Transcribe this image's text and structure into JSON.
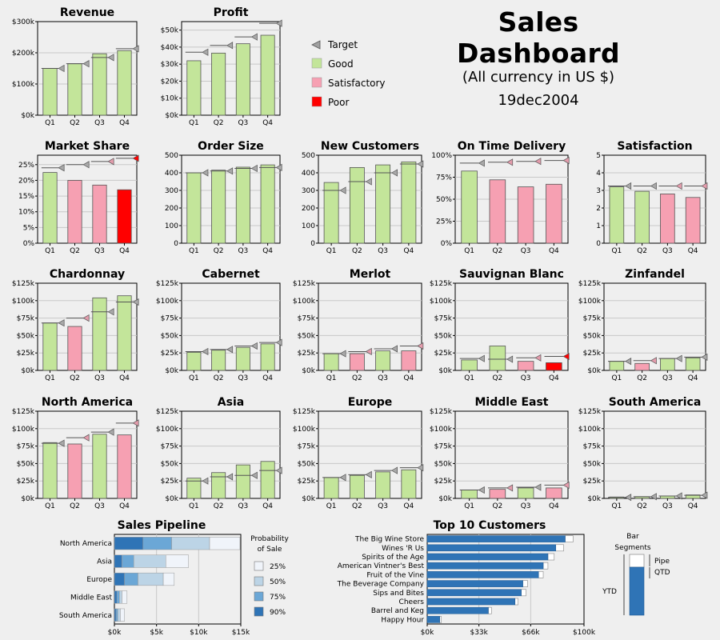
{
  "header": {
    "title": "Sales Dashboard",
    "subtitle": "(All currency in US $)",
    "date": "19dec2004"
  },
  "colors": {
    "good": "#c3e59a",
    "satisfactory": "#f6a0b2",
    "poor": "#ff0000",
    "target_good": "#a9a9a9",
    "target_satisfactory": "#e49cac",
    "target_poor": "#ff0000",
    "pipeline_25": "#f0f4fa",
    "pipeline_50": "#bcd4e6",
    "pipeline_75": "#6ba7d6",
    "pipeline_90": "#2f74b6",
    "customer_qtd": "#2f74b6",
    "customer_pipe": "#ffffff"
  },
  "legend": {
    "items": [
      {
        "label": "Target",
        "icon": "target-triangle-icon"
      },
      {
        "label": "Good",
        "color": "#c3e59a"
      },
      {
        "label": "Satisfactory",
        "color": "#f6a0b2"
      },
      {
        "label": "Poor",
        "color": "#ff0000"
      }
    ]
  },
  "chart_data": [
    {
      "type": "bar",
      "title": "Revenue",
      "categories": [
        "Q1",
        "Q2",
        "Q3",
        "Q4"
      ],
      "values": [
        150000,
        165000,
        197000,
        207000
      ],
      "targets": [
        150000,
        165000,
        185000,
        213000
      ],
      "status": [
        "good",
        "good",
        "good",
        "good"
      ],
      "target_status": [
        "good",
        "good",
        "good",
        "good"
      ],
      "ylim": [
        0,
        300000
      ],
      "yticks": [
        0,
        100000,
        200000,
        300000
      ],
      "yticklabels": [
        "$0k",
        "$100k",
        "$200k",
        "$300k"
      ]
    },
    {
      "type": "bar",
      "title": "Profit",
      "categories": [
        "Q1",
        "Q2",
        "Q3",
        "Q4"
      ],
      "values": [
        32000,
        36500,
        42000,
        47000
      ],
      "targets": [
        37000,
        41000,
        46000,
        54000
      ],
      "status": [
        "good",
        "good",
        "good",
        "good"
      ],
      "target_status": [
        "good",
        "good",
        "good",
        "good"
      ],
      "ylim": [
        0,
        55000
      ],
      "yticks": [
        0,
        10000,
        20000,
        30000,
        40000,
        50000
      ],
      "yticklabels": [
        "$0k",
        "$10k",
        "$20k",
        "$30k",
        "$40k",
        "$50k"
      ]
    },
    {
      "type": "bar",
      "title": "Market Share",
      "categories": [
        "Q1",
        "Q2",
        "Q3",
        "Q4"
      ],
      "values": [
        22.5,
        20,
        18.5,
        17
      ],
      "targets": [
        24,
        25,
        26,
        27
      ],
      "status": [
        "good",
        "satisfactory",
        "satisfactory",
        "poor"
      ],
      "target_status": [
        "good",
        "good",
        "satisfactory",
        "poor"
      ],
      "ylim": [
        0,
        28
      ],
      "yticks": [
        0,
        5,
        10,
        15,
        20,
        25
      ],
      "yticklabels": [
        "0%",
        "5%",
        "10%",
        "15%",
        "20%",
        "25%"
      ]
    },
    {
      "type": "bar",
      "title": "Order Size",
      "categories": [
        "Q1",
        "Q2",
        "Q3",
        "Q4"
      ],
      "values": [
        400,
        415,
        432,
        445
      ],
      "targets": [
        400,
        410,
        425,
        430
      ],
      "status": [
        "good",
        "good",
        "good",
        "good"
      ],
      "target_status": [
        "good",
        "good",
        "good",
        "good"
      ],
      "ylim": [
        0,
        500
      ],
      "yticks": [
        0,
        100,
        200,
        300,
        400,
        500
      ],
      "yticklabels": [
        "0",
        "100",
        "200",
        "300",
        "400",
        "500"
      ]
    },
    {
      "type": "bar",
      "title": "New Customers",
      "categories": [
        "Q1",
        "Q2",
        "Q3",
        "Q4"
      ],
      "values": [
        345,
        430,
        445,
        462
      ],
      "targets": [
        300,
        350,
        400,
        450
      ],
      "status": [
        "good",
        "good",
        "good",
        "good"
      ],
      "target_status": [
        "good",
        "good",
        "good",
        "good"
      ],
      "ylim": [
        0,
        500
      ],
      "yticks": [
        0,
        100,
        200,
        300,
        400,
        500
      ],
      "yticklabels": [
        "0",
        "100",
        "200",
        "300",
        "400",
        "500"
      ]
    },
    {
      "type": "bar",
      "title": "On Time Delivery",
      "categories": [
        "Q1",
        "Q2",
        "Q3",
        "Q4"
      ],
      "values": [
        82,
        72,
        64,
        67
      ],
      "targets": [
        91,
        92,
        93,
        94
      ],
      "status": [
        "good",
        "satisfactory",
        "satisfactory",
        "satisfactory"
      ],
      "target_status": [
        "good",
        "satisfactory",
        "satisfactory",
        "satisfactory"
      ],
      "ylim": [
        0,
        100
      ],
      "yticks": [
        0,
        25,
        50,
        75,
        100
      ],
      "yticklabels": [
        "0%",
        "25%",
        "50%",
        "75%",
        "100%"
      ]
    },
    {
      "type": "bar",
      "title": "Satisfaction",
      "categories": [
        "Q1",
        "Q2",
        "Q3",
        "Q4"
      ],
      "values": [
        3.2,
        2.95,
        2.8,
        2.6
      ],
      "targets": [
        3.25,
        3.25,
        3.25,
        3.25
      ],
      "status": [
        "good",
        "good",
        "satisfactory",
        "satisfactory"
      ],
      "target_status": [
        "good",
        "good",
        "satisfactory",
        "satisfactory"
      ],
      "ylim": [
        0,
        5
      ],
      "yticks": [
        0,
        1,
        2,
        3,
        4,
        5
      ],
      "yticklabels": [
        "0",
        "1",
        "2",
        "3",
        "4",
        "5"
      ]
    },
    {
      "type": "bar",
      "title": "Chardonnay",
      "categories": [
        "Q1",
        "Q2",
        "Q3",
        "Q4"
      ],
      "values": [
        68000,
        63000,
        104000,
        107000
      ],
      "targets": [
        68000,
        75000,
        84000,
        98000
      ],
      "status": [
        "good",
        "satisfactory",
        "good",
        "good"
      ],
      "target_status": [
        "good",
        "satisfactory",
        "good",
        "good"
      ],
      "ylim": [
        0,
        125000
      ],
      "yticks": [
        0,
        25000,
        50000,
        75000,
        100000,
        125000
      ],
      "yticklabels": [
        "$0k",
        "$25k",
        "$50k",
        "$75k",
        "$100k",
        "$125k"
      ]
    },
    {
      "type": "bar",
      "title": "Cabernet",
      "categories": [
        "Q1",
        "Q2",
        "Q3",
        "Q4"
      ],
      "values": [
        26000,
        29000,
        33000,
        38000
      ],
      "targets": [
        27000,
        30000,
        35000,
        40000
      ],
      "status": [
        "good",
        "good",
        "good",
        "good"
      ],
      "target_status": [
        "good",
        "good",
        "good",
        "good"
      ],
      "ylim": [
        0,
        125000
      ],
      "yticks": [
        0,
        25000,
        50000,
        75000,
        100000,
        125000
      ],
      "yticklabels": [
        "$0k",
        "$25k",
        "$50k",
        "$75k",
        "$100k",
        "$125k"
      ]
    },
    {
      "type": "bar",
      "title": "Merlot",
      "categories": [
        "Q1",
        "Q2",
        "Q3",
        "Q4"
      ],
      "values": [
        24000,
        24000,
        28000,
        28000
      ],
      "targets": [
        24000,
        27000,
        31000,
        35000
      ],
      "status": [
        "good",
        "satisfactory",
        "good",
        "satisfactory"
      ],
      "target_status": [
        "good",
        "satisfactory",
        "good",
        "satisfactory"
      ],
      "ylim": [
        0,
        125000
      ],
      "yticks": [
        0,
        25000,
        50000,
        75000,
        100000,
        125000
      ],
      "yticklabels": [
        "$0k",
        "$25k",
        "$50k",
        "$75k",
        "$100k",
        "$125k"
      ]
    },
    {
      "type": "bar",
      "title": "Sauvignan Blanc",
      "categories": [
        "Q1",
        "Q2",
        "Q3",
        "Q4"
      ],
      "values": [
        15000,
        35000,
        13000,
        11000
      ],
      "targets": [
        17000,
        16000,
        18000,
        20000
      ],
      "status": [
        "good",
        "good",
        "satisfactory",
        "poor"
      ],
      "target_status": [
        "good",
        "good",
        "satisfactory",
        "poor"
      ],
      "ylim": [
        0,
        125000
      ],
      "yticks": [
        0,
        25000,
        50000,
        75000,
        100000,
        125000
      ],
      "yticklabels": [
        "$0k",
        "$25k",
        "$50k",
        "$75k",
        "$100k",
        "$125k"
      ]
    },
    {
      "type": "bar",
      "title": "Zinfandel",
      "categories": [
        "Q1",
        "Q2",
        "Q3",
        "Q4"
      ],
      "values": [
        13000,
        10000,
        17000,
        18000
      ],
      "targets": [
        13000,
        14000,
        17000,
        19000
      ],
      "status": [
        "good",
        "satisfactory",
        "good",
        "good"
      ],
      "target_status": [
        "good",
        "satisfactory",
        "good",
        "good"
      ],
      "ylim": [
        0,
        125000
      ],
      "yticks": [
        0,
        25000,
        50000,
        75000,
        100000,
        125000
      ],
      "yticklabels": [
        "$0k",
        "$25k",
        "$50k",
        "$75k",
        "$100k",
        "$125k"
      ]
    },
    {
      "type": "bar",
      "title": "North America",
      "categories": [
        "Q1",
        "Q2",
        "Q3",
        "Q4"
      ],
      "values": [
        80000,
        78000,
        92000,
        91000
      ],
      "targets": [
        79000,
        87000,
        95000,
        108000
      ],
      "status": [
        "good",
        "satisfactory",
        "good",
        "satisfactory"
      ],
      "target_status": [
        "good",
        "satisfactory",
        "good",
        "satisfactory"
      ],
      "ylim": [
        0,
        125000
      ],
      "yticks": [
        0,
        25000,
        50000,
        75000,
        100000,
        125000
      ],
      "yticklabels": [
        "$0k",
        "$25k",
        "$50k",
        "$75k",
        "$100k",
        "$125k"
      ]
    },
    {
      "type": "bar",
      "title": "Asia",
      "categories": [
        "Q1",
        "Q2",
        "Q3",
        "Q4"
      ],
      "values": [
        29000,
        37000,
        48000,
        53000
      ],
      "targets": [
        25000,
        31000,
        33000,
        40000
      ],
      "status": [
        "good",
        "good",
        "good",
        "good"
      ],
      "target_status": [
        "good",
        "good",
        "good",
        "good"
      ],
      "ylim": [
        0,
        125000
      ],
      "yticks": [
        0,
        25000,
        50000,
        75000,
        100000,
        125000
      ],
      "yticklabels": [
        "$0k",
        "$25k",
        "$50k",
        "$75k",
        "$100k",
        "$125k"
      ]
    },
    {
      "type": "bar",
      "title": "Europe",
      "categories": [
        "Q1",
        "Q2",
        "Q3",
        "Q4"
      ],
      "values": [
        30000,
        33000,
        38000,
        41000
      ],
      "targets": [
        30000,
        34000,
        40000,
        44000
      ],
      "status": [
        "good",
        "good",
        "good",
        "good"
      ],
      "target_status": [
        "good",
        "good",
        "good",
        "good"
      ],
      "ylim": [
        0,
        125000
      ],
      "yticks": [
        0,
        25000,
        50000,
        75000,
        100000,
        125000
      ],
      "yticklabels": [
        "$0k",
        "$25k",
        "$50k",
        "$75k",
        "$100k",
        "$125k"
      ]
    },
    {
      "type": "bar",
      "title": "Middle East",
      "categories": [
        "Q1",
        "Q2",
        "Q3",
        "Q4"
      ],
      "values": [
        12000,
        13000,
        15000,
        15000
      ],
      "targets": [
        12000,
        15000,
        16000,
        19000
      ],
      "status": [
        "good",
        "satisfactory",
        "good",
        "satisfactory"
      ],
      "target_status": [
        "good",
        "satisfactory",
        "good",
        "satisfactory"
      ],
      "ylim": [
        0,
        125000
      ],
      "yticks": [
        0,
        25000,
        50000,
        75000,
        100000,
        125000
      ],
      "yticklabels": [
        "$0k",
        "$25k",
        "$50k",
        "$75k",
        "$100k",
        "$125k"
      ]
    },
    {
      "type": "bar",
      "title": "South America",
      "categories": [
        "Q1",
        "Q2",
        "Q3",
        "Q4"
      ],
      "values": [
        2000,
        2500,
        3500,
        5000
      ],
      "targets": [
        1500,
        2500,
        3500,
        4500
      ],
      "status": [
        "good",
        "good",
        "good",
        "good"
      ],
      "target_status": [
        "good",
        "good",
        "good",
        "good"
      ],
      "ylim": [
        0,
        125000
      ],
      "yticks": [
        0,
        25000,
        50000,
        75000,
        100000,
        125000
      ],
      "yticklabels": [
        "$0k",
        "$25k",
        "$50k",
        "$75k",
        "$100k",
        "$125k"
      ]
    },
    {
      "type": "bar",
      "orientation": "horizontal",
      "stacked": true,
      "title": "Sales Pipeline",
      "categories": [
        "North America",
        "Asia",
        "Europe",
        "Middle East",
        "South America"
      ],
      "series": [
        {
          "name": "90%",
          "values": [
            3400,
            900,
            1200,
            300,
            200
          ]
        },
        {
          "name": "75%",
          "values": [
            3400,
            1400,
            1600,
            300,
            200
          ]
        },
        {
          "name": "50%",
          "values": [
            4500,
            3800,
            3000,
            300,
            300
          ]
        },
        {
          "name": "25%",
          "values": [
            3600,
            2700,
            1300,
            600,
            500
          ]
        }
      ],
      "legend_title": "Probability of Sale",
      "legend_lines": [
        "Probability",
        "of Sale"
      ],
      "xlim": [
        0,
        15000
      ],
      "xticks": [
        0,
        5000,
        10000,
        15000
      ],
      "xticklabels": [
        "$0k",
        "$5k",
        "$10k",
        "$15k"
      ]
    },
    {
      "type": "bar",
      "orientation": "horizontal",
      "title": "Top 10 Customers",
      "categories": [
        "The Big Wine Store",
        "Wines 'R Us",
        "Spirits of the Age",
        "American Vintner's Best",
        "Fruit of the Vine",
        "The Beverage Company",
        "Sips and Bites",
        "Cheers",
        "Barrel and Keg",
        "Happy Hour"
      ],
      "series": [
        {
          "name": "QTD",
          "values": [
            88000,
            82000,
            77000,
            74000,
            71000,
            61000,
            60000,
            56000,
            39000,
            8000
          ]
        },
        {
          "name": "Pipe",
          "values": [
            5000,
            5000,
            4000,
            3000,
            3000,
            3000,
            3000,
            2000,
            2000,
            1000
          ]
        }
      ],
      "xlim": [
        0,
        100000
      ],
      "xticks": [
        0,
        33000,
        66000,
        100000
      ],
      "xticklabels": [
        "$0k",
        "$33k",
        "$66k",
        "$100k"
      ]
    }
  ],
  "bar_segments": {
    "title_line1": "Bar",
    "title_line2": "Segments",
    "pipe": "Pipe",
    "qtd": "QTD",
    "ytd": "YTD"
  }
}
